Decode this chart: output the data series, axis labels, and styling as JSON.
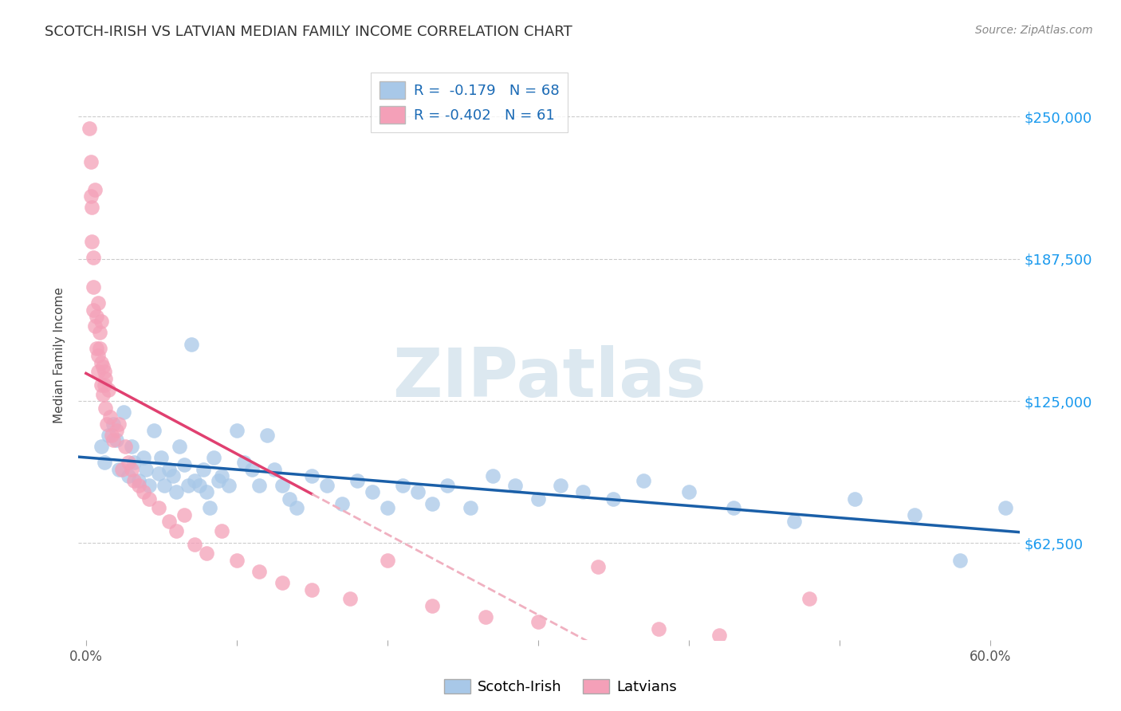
{
  "title": "SCOTCH-IRISH VS LATVIAN MEDIAN FAMILY INCOME CORRELATION CHART",
  "source": "Source: ZipAtlas.com",
  "ylabel": "Median Family Income",
  "ytick_labels": [
    "$62,500",
    "$125,000",
    "$187,500",
    "$250,000"
  ],
  "ytick_values": [
    62500,
    125000,
    187500,
    250000
  ],
  "ymin": 20000,
  "ymax": 270000,
  "xmin": -0.005,
  "xmax": 0.62,
  "scotch_irish_color": "#a8c8e8",
  "latvian_color": "#f4a0b8",
  "scotch_irish_line_color": "#1a5fa8",
  "latvian_line_color": "#e04070",
  "latvian_line_dashed_color": "#f0b0c0",
  "watermark_text": "ZIPatlas",
  "watermark_color": "#dce8f0",
  "scotch_irish_x": [
    0.01,
    0.012,
    0.015,
    0.018,
    0.02,
    0.022,
    0.025,
    0.028,
    0.03,
    0.032,
    0.035,
    0.038,
    0.04,
    0.042,
    0.045,
    0.048,
    0.05,
    0.052,
    0.055,
    0.058,
    0.06,
    0.062,
    0.065,
    0.068,
    0.07,
    0.072,
    0.075,
    0.078,
    0.08,
    0.082,
    0.085,
    0.088,
    0.09,
    0.095,
    0.1,
    0.105,
    0.11,
    0.115,
    0.12,
    0.125,
    0.13,
    0.135,
    0.14,
    0.15,
    0.16,
    0.17,
    0.18,
    0.19,
    0.2,
    0.21,
    0.22,
    0.23,
    0.24,
    0.255,
    0.27,
    0.285,
    0.3,
    0.315,
    0.33,
    0.35,
    0.37,
    0.4,
    0.43,
    0.47,
    0.51,
    0.55,
    0.58,
    0.61
  ],
  "scotch_irish_y": [
    105000,
    98000,
    110000,
    115000,
    108000,
    95000,
    120000,
    92000,
    105000,
    98000,
    90000,
    100000,
    95000,
    88000,
    112000,
    93000,
    100000,
    88000,
    95000,
    92000,
    85000,
    105000,
    97000,
    88000,
    150000,
    90000,
    88000,
    95000,
    85000,
    78000,
    100000,
    90000,
    92000,
    88000,
    112000,
    98000,
    95000,
    88000,
    110000,
    95000,
    88000,
    82000,
    78000,
    92000,
    88000,
    80000,
    90000,
    85000,
    78000,
    88000,
    85000,
    80000,
    88000,
    78000,
    92000,
    88000,
    82000,
    88000,
    85000,
    82000,
    90000,
    85000,
    78000,
    72000,
    82000,
    75000,
    55000,
    78000
  ],
  "latvian_x": [
    0.002,
    0.003,
    0.003,
    0.004,
    0.004,
    0.005,
    0.005,
    0.005,
    0.006,
    0.006,
    0.007,
    0.007,
    0.008,
    0.008,
    0.008,
    0.009,
    0.009,
    0.01,
    0.01,
    0.01,
    0.011,
    0.011,
    0.012,
    0.012,
    0.013,
    0.013,
    0.014,
    0.015,
    0.016,
    0.017,
    0.018,
    0.02,
    0.022,
    0.024,
    0.026,
    0.028,
    0.03,
    0.032,
    0.035,
    0.038,
    0.042,
    0.048,
    0.055,
    0.06,
    0.065,
    0.072,
    0.08,
    0.09,
    0.1,
    0.115,
    0.13,
    0.15,
    0.175,
    0.2,
    0.23,
    0.265,
    0.3,
    0.34,
    0.38,
    0.42,
    0.48
  ],
  "latvian_y": [
    245000,
    215000,
    230000,
    195000,
    210000,
    188000,
    175000,
    165000,
    218000,
    158000,
    162000,
    148000,
    168000,
    145000,
    138000,
    155000,
    148000,
    160000,
    142000,
    132000,
    128000,
    140000,
    138000,
    132000,
    135000,
    122000,
    115000,
    130000,
    118000,
    110000,
    108000,
    112000,
    115000,
    95000,
    105000,
    98000,
    95000,
    90000,
    88000,
    85000,
    82000,
    78000,
    72000,
    68000,
    75000,
    62000,
    58000,
    68000,
    55000,
    50000,
    45000,
    42000,
    38000,
    55000,
    35000,
    30000,
    28000,
    52000,
    25000,
    22000,
    38000
  ]
}
